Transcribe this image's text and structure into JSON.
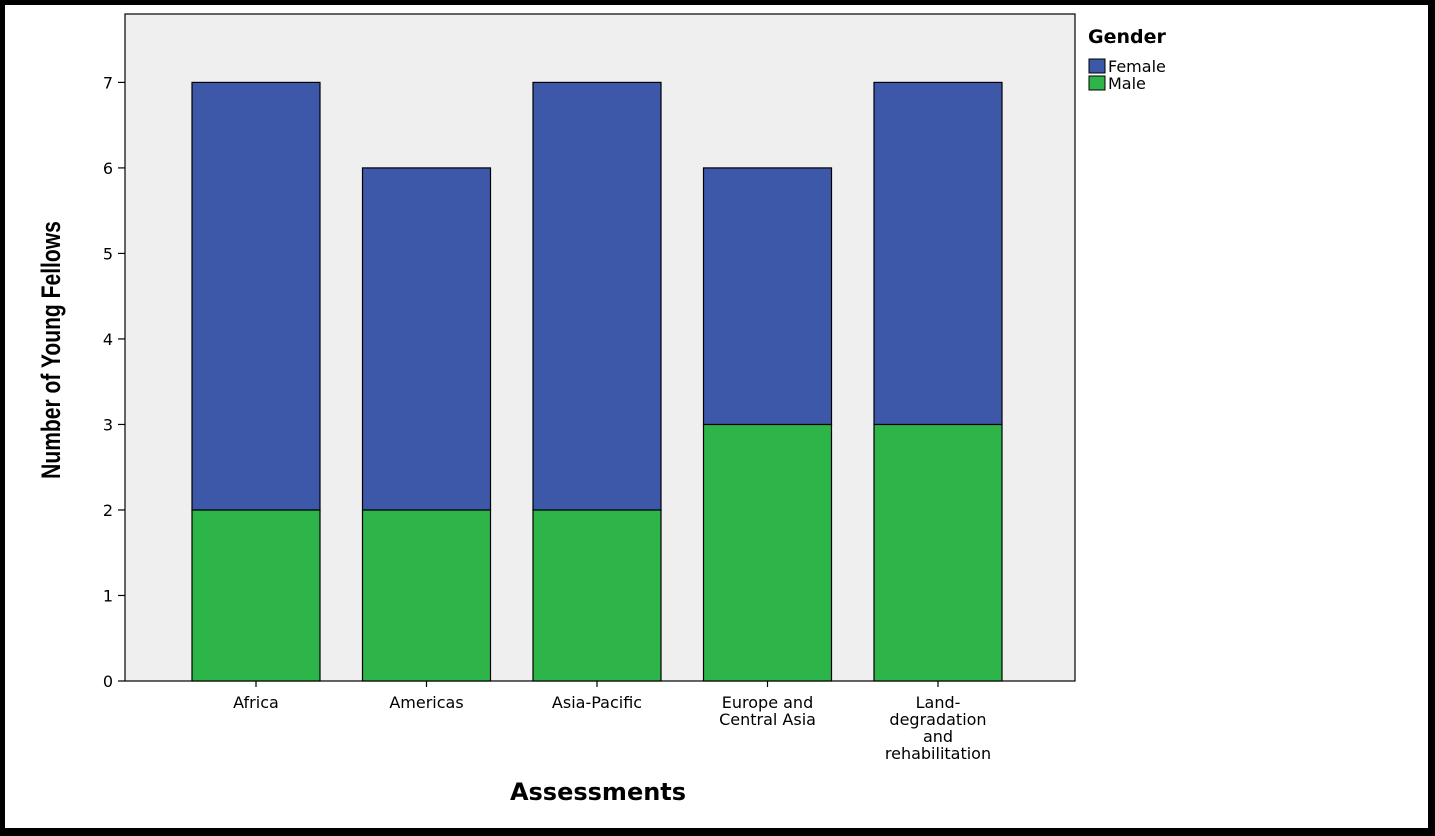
{
  "chart_data": {
    "type": "bar",
    "stacked": true,
    "title": "",
    "xlabel": "Assessments",
    "ylabel": "Number of Young Fellows",
    "ylim": [
      0,
      7.8
    ],
    "yticks": [
      0,
      1,
      2,
      3,
      4,
      5,
      6,
      7
    ],
    "grid": false,
    "legend_placement": "top-right outside",
    "legend_title": "Gender",
    "categories": [
      [
        "Africa"
      ],
      [
        "Americas"
      ],
      [
        "Asia-Pacific"
      ],
      [
        "Europe and",
        "Central Asia"
      ],
      [
        "Land-",
        "degradation",
        "and",
        "rehabilitation"
      ]
    ],
    "series": [
      {
        "name": "Male",
        "color": "#2db54a",
        "values": [
          2,
          2,
          2,
          3,
          3
        ]
      },
      {
        "name": "Female",
        "color": "#3d58a9",
        "values": [
          5,
          4,
          5,
          3,
          4
        ]
      }
    ],
    "legend_order": [
      "Female",
      "Male"
    ],
    "plot_background": "#efefef"
  }
}
